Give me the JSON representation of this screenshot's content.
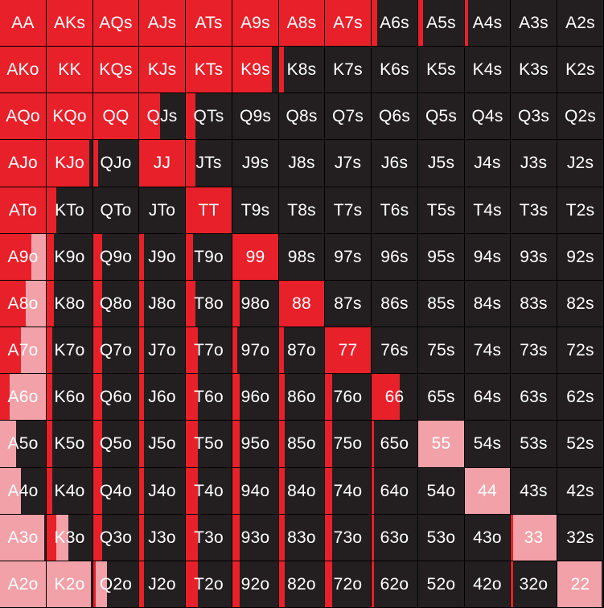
{
  "colors": {
    "background": "#231f20",
    "primary_fill": "#e8202a",
    "secondary_fill": "#f2a1a8",
    "label_text": "#ffffff"
  },
  "ranks": [
    "A",
    "K",
    "Q",
    "J",
    "T",
    "9",
    "8",
    "7",
    "6",
    "5",
    "4",
    "3",
    "2"
  ],
  "grid": {
    "rows": [
      [
        {
          "label": "AA",
          "primary": 1,
          "secondary": 0
        },
        {
          "label": "AKs",
          "primary": 1,
          "secondary": 0
        },
        {
          "label": "AQs",
          "primary": 1,
          "secondary": 0
        },
        {
          "label": "AJs",
          "primary": 1,
          "secondary": 0
        },
        {
          "label": "ATs",
          "primary": 1,
          "secondary": 0
        },
        {
          "label": "A9s",
          "primary": 1,
          "secondary": 0
        },
        {
          "label": "A8s",
          "primary": 1,
          "secondary": 0
        },
        {
          "label": "A7s",
          "primary": 1,
          "secondary": 0
        },
        {
          "label": "A6s",
          "primary": 0.12,
          "secondary": 0
        },
        {
          "label": "A5s",
          "primary": 0.1,
          "secondary": 0
        },
        {
          "label": "A4s",
          "primary": 0.07,
          "secondary": 0
        },
        {
          "label": "A3s",
          "primary": 0,
          "secondary": 0
        },
        {
          "label": "A2s",
          "primary": 0,
          "secondary": 0
        }
      ],
      [
        {
          "label": "AKo",
          "primary": 1,
          "secondary": 0
        },
        {
          "label": "KK",
          "primary": 1,
          "secondary": 0
        },
        {
          "label": "KQs",
          "primary": 1,
          "secondary": 0
        },
        {
          "label": "KJs",
          "primary": 1,
          "secondary": 0
        },
        {
          "label": "KTs",
          "primary": 1,
          "secondary": 0
        },
        {
          "label": "K9s",
          "primary": 0.85,
          "secondary": 0
        },
        {
          "label": "K8s",
          "primary": 0.1,
          "secondary": 0
        },
        {
          "label": "K7s",
          "primary": 0,
          "secondary": 0
        },
        {
          "label": "K6s",
          "primary": 0,
          "secondary": 0
        },
        {
          "label": "K5s",
          "primary": 0,
          "secondary": 0
        },
        {
          "label": "K4s",
          "primary": 0,
          "secondary": 0
        },
        {
          "label": "K3s",
          "primary": 0,
          "secondary": 0
        },
        {
          "label": "K2s",
          "primary": 0,
          "secondary": 0
        }
      ],
      [
        {
          "label": "AQo",
          "primary": 1,
          "secondary": 0
        },
        {
          "label": "KQo",
          "primary": 1,
          "secondary": 0
        },
        {
          "label": "QQ",
          "primary": 1,
          "secondary": 0
        },
        {
          "label": "QJs",
          "primary": 0.45,
          "secondary": 0
        },
        {
          "label": "QTs",
          "primary": 0.2,
          "secondary": 0
        },
        {
          "label": "Q9s",
          "primary": 0,
          "secondary": 0
        },
        {
          "label": "Q8s",
          "primary": 0,
          "secondary": 0
        },
        {
          "label": "Q7s",
          "primary": 0,
          "secondary": 0
        },
        {
          "label": "Q6s",
          "primary": 0,
          "secondary": 0
        },
        {
          "label": "Q5s",
          "primary": 0,
          "secondary": 0
        },
        {
          "label": "Q4s",
          "primary": 0,
          "secondary": 0
        },
        {
          "label": "Q3s",
          "primary": 0,
          "secondary": 0
        },
        {
          "label": "Q2s",
          "primary": 0,
          "secondary": 0
        }
      ],
      [
        {
          "label": "AJo",
          "primary": 1,
          "secondary": 0
        },
        {
          "label": "KJo",
          "primary": 0.92,
          "secondary": 0
        },
        {
          "label": "QJo",
          "primary": 0.1,
          "secondary": 0
        },
        {
          "label": "JJ",
          "primary": 1,
          "secondary": 0
        },
        {
          "label": "JTs",
          "primary": 0.2,
          "secondary": 0
        },
        {
          "label": "J9s",
          "primary": 0,
          "secondary": 0
        },
        {
          "label": "J8s",
          "primary": 0,
          "secondary": 0
        },
        {
          "label": "J7s",
          "primary": 0,
          "secondary": 0
        },
        {
          "label": "J6s",
          "primary": 0,
          "secondary": 0
        },
        {
          "label": "J5s",
          "primary": 0,
          "secondary": 0
        },
        {
          "label": "J4s",
          "primary": 0,
          "secondary": 0
        },
        {
          "label": "J3s",
          "primary": 0,
          "secondary": 0
        },
        {
          "label": "J2s",
          "primary": 0,
          "secondary": 0
        }
      ],
      [
        {
          "label": "ATo",
          "primary": 1,
          "secondary": 0
        },
        {
          "label": "KTo",
          "primary": 0.2,
          "secondary": 0
        },
        {
          "label": "QTo",
          "primary": 0,
          "secondary": 0
        },
        {
          "label": "JTo",
          "primary": 0,
          "secondary": 0
        },
        {
          "label": "TT",
          "primary": 1,
          "secondary": 0
        },
        {
          "label": "T9s",
          "primary": 0,
          "secondary": 0
        },
        {
          "label": "T8s",
          "primary": 0,
          "secondary": 0
        },
        {
          "label": "T7s",
          "primary": 0,
          "secondary": 0
        },
        {
          "label": "T6s",
          "primary": 0,
          "secondary": 0
        },
        {
          "label": "T5s",
          "primary": 0,
          "secondary": 0
        },
        {
          "label": "T4s",
          "primary": 0,
          "secondary": 0
        },
        {
          "label": "T3s",
          "primary": 0,
          "secondary": 0
        },
        {
          "label": "T2s",
          "primary": 0,
          "secondary": 0
        }
      ],
      [
        {
          "label": "A9o",
          "primary": 0.68,
          "secondary": 0.32
        },
        {
          "label": "K9o",
          "primary": 0.15,
          "secondary": 0
        },
        {
          "label": "Q9o",
          "primary": 0.2,
          "secondary": 0
        },
        {
          "label": "J9o",
          "primary": 0.1,
          "secondary": 0
        },
        {
          "label": "T9o",
          "primary": 0.15,
          "secondary": 0
        },
        {
          "label": "99",
          "primary": 1,
          "secondary": 0
        },
        {
          "label": "98s",
          "primary": 0,
          "secondary": 0
        },
        {
          "label": "97s",
          "primary": 0,
          "secondary": 0
        },
        {
          "label": "96s",
          "primary": 0,
          "secondary": 0
        },
        {
          "label": "95s",
          "primary": 0,
          "secondary": 0
        },
        {
          "label": "94s",
          "primary": 0,
          "secondary": 0
        },
        {
          "label": "93s",
          "primary": 0,
          "secondary": 0
        },
        {
          "label": "92s",
          "primary": 0,
          "secondary": 0
        }
      ],
      [
        {
          "label": "A8o",
          "primary": 0.55,
          "secondary": 0.45
        },
        {
          "label": "K8o",
          "primary": 0.15,
          "secondary": 0
        },
        {
          "label": "Q8o",
          "primary": 0.2,
          "secondary": 0
        },
        {
          "label": "J8o",
          "primary": 0.1,
          "secondary": 0
        },
        {
          "label": "T8o",
          "primary": 0.2,
          "secondary": 0
        },
        {
          "label": "98o",
          "primary": 0.15,
          "secondary": 0
        },
        {
          "label": "88",
          "primary": 1,
          "secondary": 0
        },
        {
          "label": "87s",
          "primary": 0,
          "secondary": 0
        },
        {
          "label": "86s",
          "primary": 0,
          "secondary": 0
        },
        {
          "label": "85s",
          "primary": 0,
          "secondary": 0
        },
        {
          "label": "84s",
          "primary": 0,
          "secondary": 0
        },
        {
          "label": "83s",
          "primary": 0,
          "secondary": 0
        },
        {
          "label": "82s",
          "primary": 0,
          "secondary": 0
        }
      ],
      [
        {
          "label": "A7o",
          "primary": 0.45,
          "secondary": 0.55
        },
        {
          "label": "K7o",
          "primary": 0.12,
          "secondary": 0
        },
        {
          "label": "Q7o",
          "primary": 0.2,
          "secondary": 0
        },
        {
          "label": "J7o",
          "primary": 0.1,
          "secondary": 0
        },
        {
          "label": "T7o",
          "primary": 0.25,
          "secondary": 0
        },
        {
          "label": "97o",
          "primary": 0.1,
          "secondary": 0
        },
        {
          "label": "87o",
          "primary": 0.1,
          "secondary": 0
        },
        {
          "label": "77",
          "primary": 1,
          "secondary": 0
        },
        {
          "label": "76s",
          "primary": 0,
          "secondary": 0
        },
        {
          "label": "75s",
          "primary": 0,
          "secondary": 0
        },
        {
          "label": "74s",
          "primary": 0,
          "secondary": 0
        },
        {
          "label": "73s",
          "primary": 0,
          "secondary": 0
        },
        {
          "label": "72s",
          "primary": 0,
          "secondary": 0
        }
      ],
      [
        {
          "label": "A6o",
          "primary": 0.2,
          "secondary": 0.8
        },
        {
          "label": "K6o",
          "primary": 0.12,
          "secondary": 0
        },
        {
          "label": "Q6o",
          "primary": 0.2,
          "secondary": 0
        },
        {
          "label": "J6o",
          "primary": 0.1,
          "secondary": 0
        },
        {
          "label": "T6o",
          "primary": 0.25,
          "secondary": 0
        },
        {
          "label": "96o",
          "primary": 0.15,
          "secondary": 0
        },
        {
          "label": "86o",
          "primary": 0.12,
          "secondary": 0
        },
        {
          "label": "76o",
          "primary": 0.15,
          "secondary": 0
        },
        {
          "label": "66",
          "primary": 0.6,
          "secondary": 0
        },
        {
          "label": "65s",
          "primary": 0,
          "secondary": 0
        },
        {
          "label": "64s",
          "primary": 0,
          "secondary": 0
        },
        {
          "label": "63s",
          "primary": 0,
          "secondary": 0
        },
        {
          "label": "62s",
          "primary": 0,
          "secondary": 0
        }
      ],
      [
        {
          "label": "A5o",
          "primary": 0,
          "secondary": 0.35
        },
        {
          "label": "K5o",
          "primary": 0.12,
          "secondary": 0
        },
        {
          "label": "Q5o",
          "primary": 0.2,
          "secondary": 0
        },
        {
          "label": "J5o",
          "primary": 0.1,
          "secondary": 0
        },
        {
          "label": "T5o",
          "primary": 0.25,
          "secondary": 0
        },
        {
          "label": "95o",
          "primary": 0.15,
          "secondary": 0
        },
        {
          "label": "85o",
          "primary": 0.12,
          "secondary": 0
        },
        {
          "label": "75o",
          "primary": 0.15,
          "secondary": 0
        },
        {
          "label": "65o",
          "primary": 0.05,
          "secondary": 0
        },
        {
          "label": "55",
          "primary": 0,
          "secondary": 0.98
        },
        {
          "label": "54s",
          "primary": 0,
          "secondary": 0
        },
        {
          "label": "53s",
          "primary": 0,
          "secondary": 0
        },
        {
          "label": "52s",
          "primary": 0,
          "secondary": 0
        }
      ],
      [
        {
          "label": "A4o",
          "primary": 0,
          "secondary": 0.45
        },
        {
          "label": "K4o",
          "primary": 0.12,
          "secondary": 0
        },
        {
          "label": "Q4o",
          "primary": 0.2,
          "secondary": 0
        },
        {
          "label": "J4o",
          "primary": 0.1,
          "secondary": 0
        },
        {
          "label": "T4o",
          "primary": 0.25,
          "secondary": 0
        },
        {
          "label": "94o",
          "primary": 0.15,
          "secondary": 0
        },
        {
          "label": "84o",
          "primary": 0.12,
          "secondary": 0
        },
        {
          "label": "74o",
          "primary": 0.15,
          "secondary": 0
        },
        {
          "label": "64o",
          "primary": 0.05,
          "secondary": 0
        },
        {
          "label": "54o",
          "primary": 0,
          "secondary": 0
        },
        {
          "label": "44",
          "primary": 0,
          "secondary": 1
        },
        {
          "label": "43s",
          "primary": 0,
          "secondary": 0
        },
        {
          "label": "42s",
          "primary": 0,
          "secondary": 0
        }
      ],
      [
        {
          "label": "A3o",
          "primary": 0,
          "secondary": 0.95
        },
        {
          "label": "K3o",
          "primary": 0.2,
          "secondary": 0.25
        },
        {
          "label": "Q3o",
          "primary": 0.2,
          "secondary": 0
        },
        {
          "label": "J3o",
          "primary": 0.1,
          "secondary": 0
        },
        {
          "label": "T3o",
          "primary": 0.25,
          "secondary": 0
        },
        {
          "label": "93o",
          "primary": 0.15,
          "secondary": 0
        },
        {
          "label": "83o",
          "primary": 0.12,
          "secondary": 0
        },
        {
          "label": "73o",
          "primary": 0.15,
          "secondary": 0
        },
        {
          "label": "63o",
          "primary": 0.05,
          "secondary": 0
        },
        {
          "label": "53o",
          "primary": 0,
          "secondary": 0
        },
        {
          "label": "43o",
          "primary": 0,
          "secondary": 0
        },
        {
          "label": "33",
          "primary": 0.05,
          "secondary": 0.95
        },
        {
          "label": "32s",
          "primary": 0,
          "secondary": 0
        }
      ],
      [
        {
          "label": "A2o",
          "primary": 0,
          "secondary": 1
        },
        {
          "label": "K2o",
          "primary": 0,
          "secondary": 0.95
        },
        {
          "label": "Q2o",
          "primary": 0.05,
          "secondary": 0.25
        },
        {
          "label": "J2o",
          "primary": 0.1,
          "secondary": 0
        },
        {
          "label": "T2o",
          "primary": 0.25,
          "secondary": 0
        },
        {
          "label": "92o",
          "primary": 0.15,
          "secondary": 0
        },
        {
          "label": "82o",
          "primary": 0.12,
          "secondary": 0
        },
        {
          "label": "72o",
          "primary": 0.15,
          "secondary": 0
        },
        {
          "label": "62o",
          "primary": 0.05,
          "secondary": 0
        },
        {
          "label": "52o",
          "primary": 0,
          "secondary": 0
        },
        {
          "label": "42o",
          "primary": 0,
          "secondary": 0
        },
        {
          "label": "32o",
          "primary": 0.05,
          "secondary": 0
        },
        {
          "label": "22",
          "primary": 0,
          "secondary": 0.95
        }
      ]
    ]
  }
}
